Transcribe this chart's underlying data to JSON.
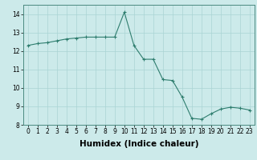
{
  "x": [
    0,
    1,
    2,
    3,
    4,
    5,
    6,
    7,
    8,
    9,
    10,
    11,
    12,
    13,
    14,
    15,
    16,
    17,
    18,
    19,
    20,
    21,
    22,
    23
  ],
  "y": [
    12.3,
    12.4,
    12.45,
    12.55,
    12.65,
    12.7,
    12.75,
    12.75,
    12.75,
    12.75,
    14.1,
    12.3,
    11.55,
    11.55,
    10.45,
    10.4,
    9.5,
    8.35,
    8.3,
    8.6,
    8.85,
    8.95,
    8.9,
    8.8
  ],
  "line_color": "#2e7d6e",
  "marker": "+",
  "marker_size": 3,
  "marker_lw": 0.8,
  "line_width": 0.8,
  "bg_color": "#cceaea",
  "grid_color": "#aad4d4",
  "xlabel": "Humidex (Indice chaleur)",
  "xlim": [
    -0.5,
    23.5
  ],
  "ylim": [
    8,
    14.5
  ],
  "yticks": [
    8,
    9,
    10,
    11,
    12,
    13,
    14
  ],
  "xticks": [
    0,
    1,
    2,
    3,
    4,
    5,
    6,
    7,
    8,
    9,
    10,
    11,
    12,
    13,
    14,
    15,
    16,
    17,
    18,
    19,
    20,
    21,
    22,
    23
  ],
  "tick_fontsize": 5.5,
  "xlabel_fontsize": 7.5,
  "xlabel_fontweight": "bold"
}
